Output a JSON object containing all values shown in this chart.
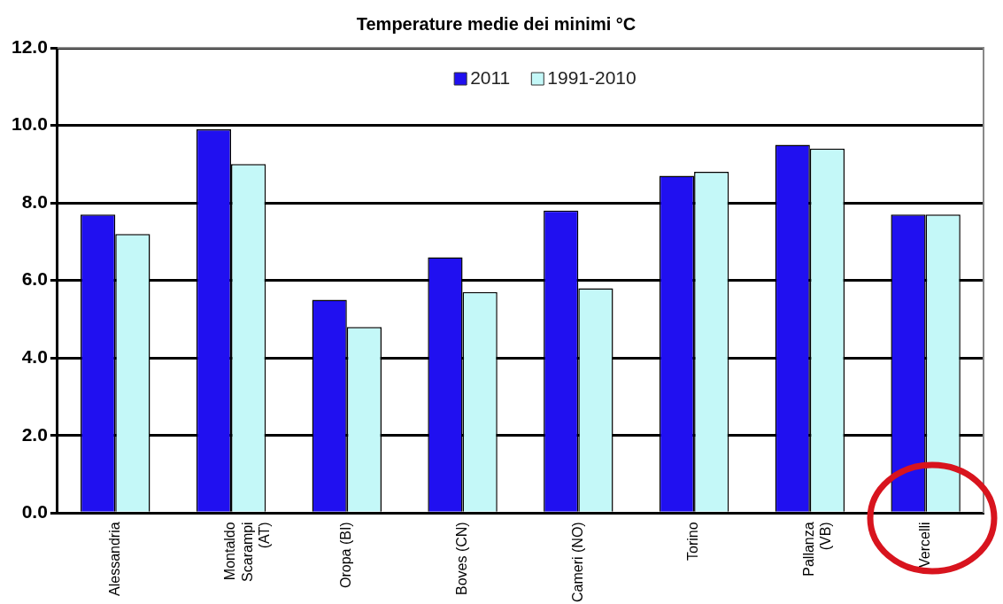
{
  "chart_data": {
    "type": "bar",
    "title": "Temperature medie dei minimi °C",
    "categories": [
      "Alessandria",
      "Montaldo\nScarampi\n(AT)",
      "Oropa (BI)",
      "Boves (CN)",
      "Cameri (NO)",
      "Torino",
      "Pallanza\n(VB)",
      "Vercelli"
    ],
    "series": [
      {
        "name": "2011",
        "color": "#2010f0",
        "values": [
          7.7,
          9.9,
          5.5,
          6.6,
          7.8,
          8.7,
          9.5,
          7.7
        ]
      },
      {
        "name": "1991-2010",
        "color": "#c4f8f8",
        "values": [
          7.2,
          9.0,
          4.8,
          5.7,
          5.8,
          8.8,
          9.4,
          7.7
        ]
      }
    ],
    "ylim": [
      0,
      12
    ],
    "yticks": [
      {
        "value": 0,
        "label": "0.0"
      },
      {
        "value": 2,
        "label": "2.0"
      },
      {
        "value": 4,
        "label": "4.0"
      },
      {
        "value": 6,
        "label": "6.0"
      },
      {
        "value": 8,
        "label": "8.0"
      },
      {
        "value": 10,
        "label": "10.0"
      },
      {
        "value": 12,
        "label": "12.0"
      }
    ],
    "grid": "y",
    "legend": "top"
  }
}
